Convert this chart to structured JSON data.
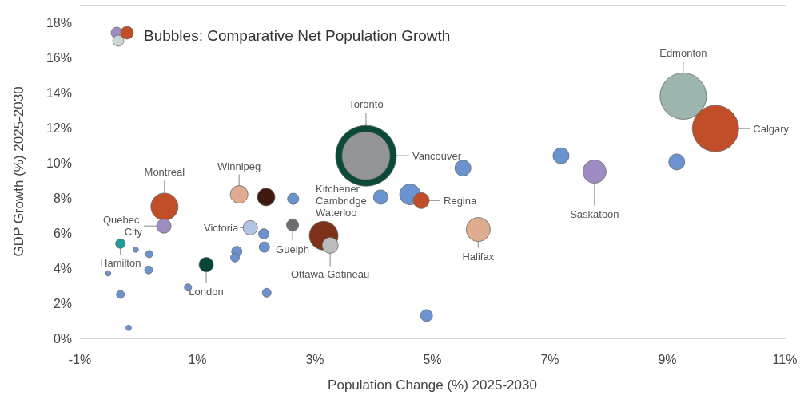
{
  "chart_data": {
    "type": "bubble",
    "xlabel": "Population Change (%) 2025-2030",
    "ylabel": "GDP Growth (%) 2025-2030",
    "xlim": [
      -1,
      11
    ],
    "xticks": [
      {
        "value": -1,
        "label": "-1%"
      },
      {
        "value": 1,
        "label": "1%"
      },
      {
        "value": 3,
        "label": "3%"
      },
      {
        "value": 5,
        "label": "5%"
      },
      {
        "value": 7,
        "label": "7%"
      },
      {
        "value": 9,
        "label": "9%"
      },
      {
        "value": 11,
        "label": "11%"
      }
    ],
    "ylim": [
      0,
      19
    ],
    "yticks": [
      {
        "value": 0,
        "label": "0%"
      },
      {
        "value": 2,
        "label": "2%"
      },
      {
        "value": 4,
        "label": "4%"
      },
      {
        "value": 6,
        "label": "6%"
      },
      {
        "value": 8,
        "label": "8%"
      },
      {
        "value": 10,
        "label": "10%"
      },
      {
        "value": 12,
        "label": "12%"
      },
      {
        "value": 14,
        "label": "14%"
      },
      {
        "value": 16,
        "label": "16%"
      },
      {
        "value": 18,
        "label": "18%"
      }
    ],
    "grid": false,
    "x": [
      0.44,
      0.43,
      -0.31,
      -0.05,
      0.18,
      0.17,
      -0.52,
      -0.31,
      -0.17,
      1.15,
      0.84,
      1.71,
      2.17,
      2.63,
      1.9,
      2.13,
      2.14,
      1.67,
      1.64,
      2.18,
      2.62,
      3.15,
      3.26,
      3.87,
      3.87,
      4.12,
      4.62,
      4.81,
      5.52,
      5.78,
      4.9,
      7.19,
      7.76,
      9.16,
      9.27,
      9.82
    ],
    "values": [
      7.5,
      6.4,
      5.4,
      5.05,
      4.8,
      3.9,
      3.7,
      2.5,
      0.6,
      4.2,
      2.9,
      8.2,
      8.05,
      7.95,
      6.3,
      5.95,
      5.2,
      4.95,
      4.6,
      2.6,
      6.45,
      5.85,
      5.3,
      10.4,
      10.4,
      8.05,
      8.2,
      7.85,
      9.7,
      6.2,
      1.3,
      10.4,
      9.5,
      10.05,
      13.8,
      11.95
    ],
    "sizes": [
      0.2,
      0.056,
      0.025,
      0.008,
      0.014,
      0.017,
      0.008,
      0.017,
      0.008,
      0.056,
      0.014,
      0.084,
      0.084,
      0.034,
      0.056,
      0.029,
      0.029,
      0.029,
      0.021,
      0.021,
      0.039,
      0.224,
      0.069,
      1,
      0.623,
      0.056,
      0.117,
      0.069,
      0.069,
      0.156,
      0.039,
      0.069,
      0.146,
      0.069,
      0.582,
      0.582
    ],
    "colors": [
      "#c04e28",
      "#9e8bc2",
      "#1a9e96",
      "#6a93cf",
      "#6a93cf",
      "#6a93cf",
      "#6a93cf",
      "#6a93cf",
      "#6a93cf",
      "#07463a",
      "#6a93cf",
      "#e0ac90",
      "#3f1a10",
      "#6a93cf",
      "#b3c3e3",
      "#6a93cf",
      "#6a93cf",
      "#6a93cf",
      "#6a93cf",
      "#6a93cf",
      "#6d6e71",
      "#7e3219",
      "#bcbcbc",
      "#0b4a3a",
      "#939598",
      "#6a93cf",
      "#6a93cf",
      "#c04e28",
      "#6a93cf",
      "#e0ac90",
      "#6a93cf",
      "#6a93cf",
      "#9e8bc2",
      "#6a93cf",
      "#9cb5ae",
      "#c04e28"
    ],
    "annotations": [
      {
        "text": "Montreal",
        "x": 0.44,
        "y": 7.5
      },
      {
        "text": "Quebec City",
        "x": 0.43,
        "y": 6.4
      },
      {
        "text": "Hamilton",
        "x": -0.31,
        "y": 5.4
      },
      {
        "text": "London",
        "x": 1.15,
        "y": 4.2
      },
      {
        "text": "Winnipeg",
        "x": 1.71,
        "y": 8.2
      },
      {
        "text": "Victoria",
        "x": 1.9,
        "y": 6.3
      },
      {
        "text": "Guelph",
        "x": 2.62,
        "y": 6.45
      },
      {
        "text": "Kitchener Cambridge Waterloo",
        "x": 3.15,
        "y": 5.85
      },
      {
        "text": "Ottawa-Gatineau",
        "x": 3.26,
        "y": 5.3
      },
      {
        "text": "Toronto",
        "x": 3.87,
        "y": 10.4
      },
      {
        "text": "Vancouver",
        "x": 3.87,
        "y": 10.4
      },
      {
        "text": "Regina",
        "x": 4.81,
        "y": 7.85
      },
      {
        "text": "Halifax",
        "x": 5.78,
        "y": 6.2
      },
      {
        "text": "Saskatoon",
        "x": 7.76,
        "y": 9.5
      },
      {
        "text": "Edmonton",
        "x": 9.27,
        "y": 13.8
      },
      {
        "text": "Calgary",
        "x": 9.82,
        "y": 11.95
      },
      "Bubbles: Comparative Net Population Growth"
    ]
  }
}
